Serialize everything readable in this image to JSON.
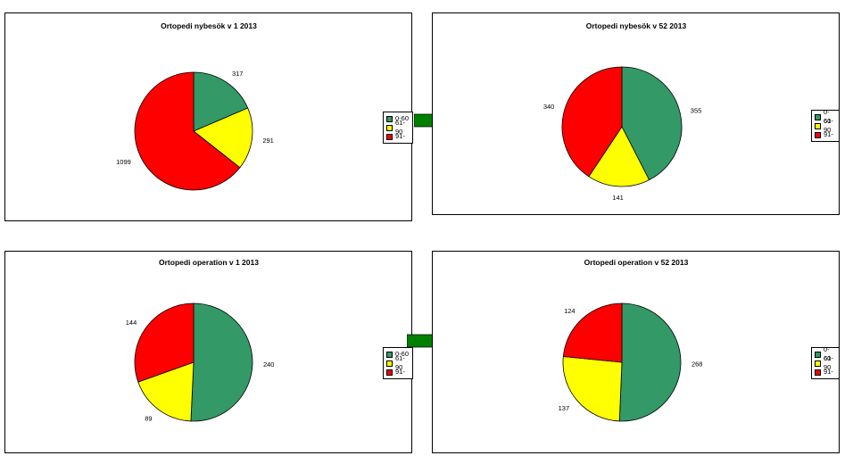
{
  "colors": {
    "0-60": "#339966",
    "61-90": "#ffff00",
    "91-": "#ff0000",
    "arrow": "#008000"
  },
  "legend_labels": [
    "0-60",
    "61-90",
    "91-"
  ],
  "chart_data": [
    {
      "type": "pie",
      "title": "Ortopedi nybesök v 1 2013",
      "categories": [
        "0-60",
        "61-90",
        "91-"
      ],
      "values": [
        317,
        291,
        1099
      ],
      "legend": "right"
    },
    {
      "type": "pie",
      "title": "Ortopedi nybesök v 52 2013",
      "categories": [
        "0-60",
        "61-90",
        "91-"
      ],
      "values": [
        355,
        141,
        340
      ],
      "legend": "right"
    },
    {
      "type": "pie",
      "title": "Ortopedi operation v 1 2013",
      "categories": [
        "0-60",
        "61-90",
        "91-"
      ],
      "values": [
        240,
        89,
        144
      ],
      "legend": "right"
    },
    {
      "type": "pie",
      "title": "Ortopedi operation v 52 2013",
      "categories": [
        "0-60",
        "61-90",
        "91-"
      ],
      "values": [
        268,
        137,
        124
      ],
      "legend": "right"
    }
  ]
}
